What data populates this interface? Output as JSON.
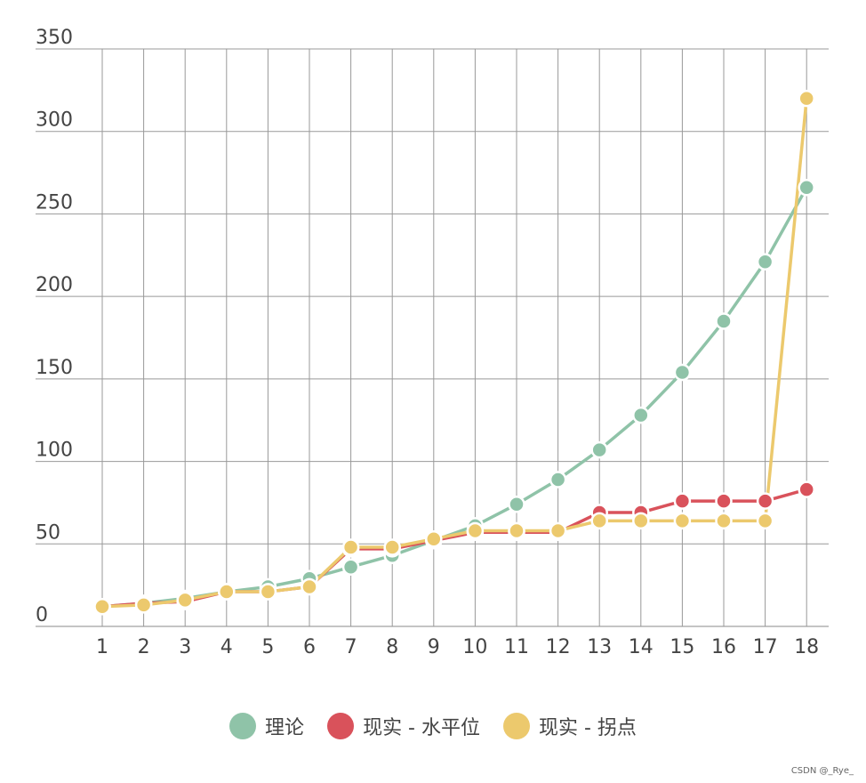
{
  "chart_data": {
    "type": "line",
    "x": [
      1,
      2,
      3,
      4,
      5,
      6,
      7,
      8,
      9,
      10,
      11,
      12,
      13,
      14,
      15,
      16,
      17,
      18
    ],
    "ylim": [
      0,
      350
    ],
    "yticks": [
      0,
      50,
      100,
      150,
      200,
      250,
      300,
      350
    ],
    "grid": true,
    "legend_position": "bottom",
    "series": [
      {
        "name": "理论",
        "color": "#8fc3a8",
        "values": [
          12,
          14,
          17,
          21,
          24,
          29,
          36,
          43,
          52,
          61,
          74,
          89,
          107,
          128,
          154,
          185,
          221,
          266
        ]
      },
      {
        "name": "现实 - 水平位",
        "color": "#d9525b",
        "values": [
          12,
          14,
          15,
          21,
          21,
          24,
          47,
          47,
          52,
          57,
          57,
          57,
          69,
          69,
          76,
          76,
          76,
          83
        ]
      },
      {
        "name": "现实 - 拐点",
        "color": "#ecc96d",
        "values": [
          12,
          13,
          16,
          21,
          21,
          24,
          48,
          48,
          53,
          58,
          58,
          58,
          64,
          64,
          64,
          64,
          64,
          320
        ]
      }
    ]
  },
  "watermark": "CSDN @_Rye_"
}
